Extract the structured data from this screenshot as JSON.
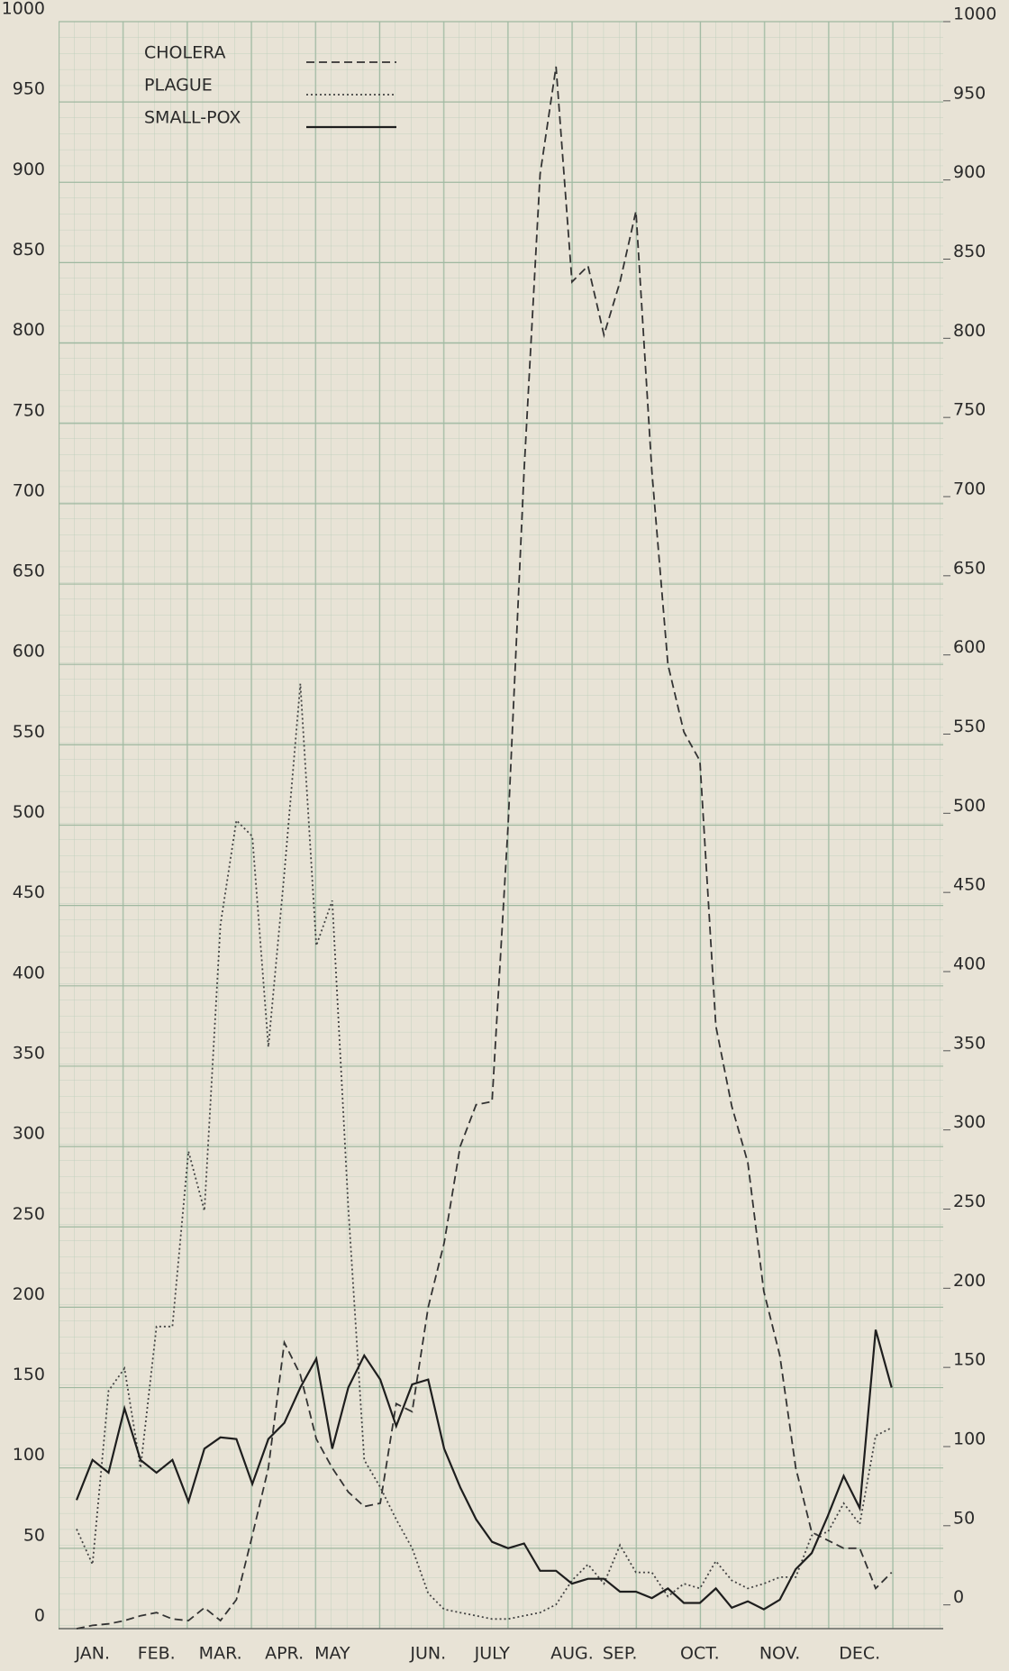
{
  "chart_data": {
    "type": "line",
    "categories": [
      null,
      "JAN.",
      null,
      null,
      null,
      "FEB.",
      null,
      null,
      null,
      "MAR.",
      null,
      null,
      null,
      "APR.",
      null,
      null,
      "MAY",
      null,
      null,
      null,
      null,
      null,
      "JUN.",
      null,
      null,
      null,
      "JULY",
      null,
      null,
      null,
      null,
      "AUG.",
      null,
      null,
      "SEP.",
      null,
      null,
      null,
      null,
      "OCT.",
      null,
      null,
      null,
      null,
      "NOV.",
      null,
      null,
      null,
      null,
      "DEC.",
      null,
      null
    ],
    "series": [
      {
        "name": "CHOLERA",
        "color": "#333333",
        "dash": "dashed",
        "values": [
          0,
          2,
          3,
          5,
          8,
          10,
          6,
          5,
          13,
          5,
          18,
          58,
          100,
          178,
          158,
          118,
          100,
          85,
          76,
          78,
          140,
          135,
          200,
          240,
          300,
          326,
          328,
          500,
          720,
          905,
          972,
          838,
          848,
          805,
          838,
          882,
          720,
          600,
          558,
          540,
          375,
          325,
          290,
          210,
          170,
          100,
          60,
          55,
          50,
          50,
          25,
          35
        ]
      },
      {
        "name": "PLAGUE",
        "color": "#444444",
        "dash": "dotted",
        "values": [
          62,
          40,
          148,
          162,
          100,
          188,
          188,
          297,
          260,
          438,
          503,
          493,
          362,
          470,
          588,
          425,
          453,
          262,
          105,
          88,
          68,
          50,
          22,
          12,
          10,
          8,
          6,
          6,
          8,
          10,
          15,
          30,
          40,
          28,
          52,
          35,
          35,
          20,
          28,
          25,
          42,
          30,
          25,
          28,
          32,
          32,
          58,
          60,
          78,
          65,
          120,
          125
        ]
      },
      {
        "name": "SMALL-POX",
        "color": "#1e1e1e",
        "dash": "solid",
        "values": [
          80,
          105,
          97,
          137,
          105,
          97,
          105,
          79,
          112,
          119,
          118,
          90,
          118,
          128,
          150,
          168,
          112,
          150,
          170,
          155,
          126,
          152,
          155,
          112,
          88,
          68,
          54,
          50,
          53,
          36,
          36,
          28,
          31,
          31,
          23,
          23,
          19,
          25,
          16,
          16,
          25,
          13,
          17,
          12,
          18,
          37,
          47,
          70,
          95,
          75,
          186,
          150
        ]
      }
    ],
    "ylim": [
      0,
      1000
    ],
    "yticks": [
      0,
      50,
      100,
      150,
      200,
      250,
      300,
      350,
      400,
      450,
      500,
      550,
      600,
      650,
      700,
      750,
      800,
      850,
      900,
      950,
      1000
    ],
    "y2lim": [
      -15,
      1000
    ],
    "y2ticks": [
      0,
      50,
      100,
      150,
      200,
      250,
      300,
      350,
      400,
      450,
      500,
      550,
      600,
      650,
      700,
      750,
      800,
      850,
      900,
      950,
      1000
    ],
    "grid": true,
    "legend": "top-left"
  }
}
